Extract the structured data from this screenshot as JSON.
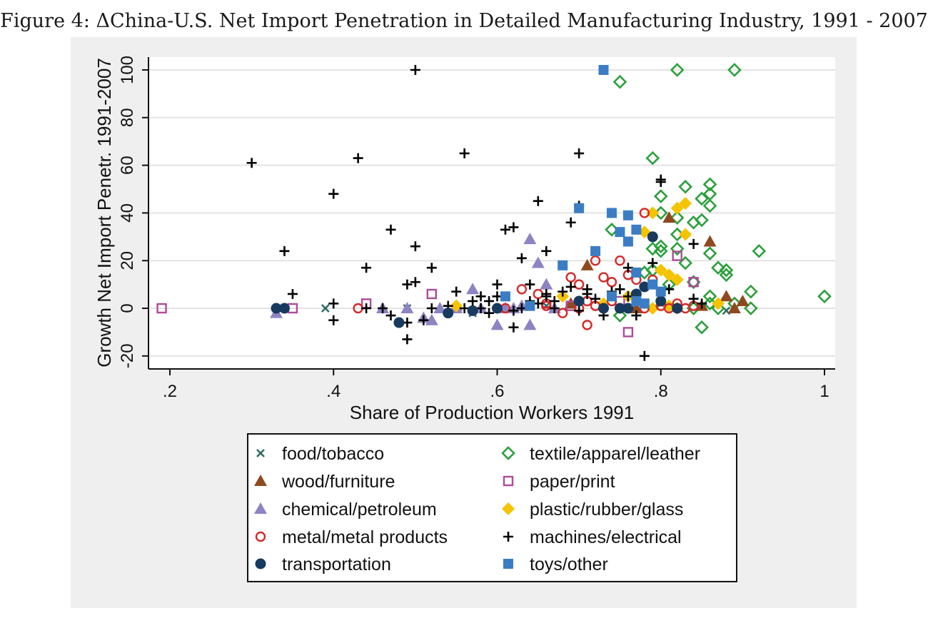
{
  "figure": {
    "title": "Figure 4: ΔChina-U.S. Net Import Penetration in Detailed Manufacturing Industry, 1991 - 2007"
  },
  "chart_data": {
    "type": "scatter",
    "title": "Figure 4: ΔChina-U.S. Net Import Penetration in Detailed Manufacturing Industry, 1991 - 2007",
    "xlabel": "Share of Production Workers 1991",
    "ylabel": "Growth Net Import Penetr. 1991-2007",
    "xlim": [
      0.18,
      1.0
    ],
    "ylim": [
      -25,
      105
    ],
    "x_ticks": [
      0.2,
      0.4,
      0.6,
      0.8,
      1.0
    ],
    "x_tick_labels": [
      ".2",
      ".4",
      ".6",
      ".8",
      "1"
    ],
    "y_ticks": [
      -20,
      0,
      20,
      40,
      60,
      80,
      100
    ],
    "y_tick_labels": [
      "-20",
      "0",
      "20",
      "40",
      "60",
      "80",
      "100"
    ],
    "grid": "horizontal",
    "legend_position": "bottom",
    "series": [
      {
        "name": "food/tobacco",
        "marker": "x",
        "color": "#2f6b63",
        "points": [
          [
            0.39,
            0
          ],
          [
            0.49,
            0
          ],
          [
            0.57,
            -2
          ],
          [
            0.66,
            1
          ],
          [
            0.8,
            2
          ],
          [
            0.88,
            -1
          ]
        ]
      },
      {
        "name": "textile/apparel/leather",
        "marker": "diamond-open",
        "color": "#2ca03c",
        "points": [
          [
            0.75,
            95
          ],
          [
            0.82,
            100
          ],
          [
            0.89,
            100
          ],
          [
            0.79,
            63
          ],
          [
            0.8,
            47
          ],
          [
            0.83,
            51
          ],
          [
            0.86,
            52
          ],
          [
            0.86,
            48
          ],
          [
            0.85,
            46
          ],
          [
            0.86,
            43
          ],
          [
            0.84,
            36
          ],
          [
            0.85,
            37
          ],
          [
            0.8,
            40
          ],
          [
            0.82,
            38
          ],
          [
            0.82,
            31
          ],
          [
            0.8,
            26
          ],
          [
            0.8,
            24
          ],
          [
            0.82,
            25
          ],
          [
            0.79,
            25
          ],
          [
            0.86,
            23
          ],
          [
            0.74,
            33
          ],
          [
            0.92,
            24
          ],
          [
            0.83,
            19
          ],
          [
            0.87,
            17
          ],
          [
            0.88,
            16
          ],
          [
            0.88,
            14
          ],
          [
            0.79,
            16
          ],
          [
            0.78,
            15
          ],
          [
            0.81,
            10
          ],
          [
            0.91,
            7
          ],
          [
            0.86,
            5
          ],
          [
            0.86,
            2
          ],
          [
            0.89,
            2
          ],
          [
            0.91,
            0
          ],
          [
            1.0,
            5
          ],
          [
            0.84,
            0
          ],
          [
            0.75,
            -3
          ],
          [
            0.85,
            -8
          ],
          [
            0.87,
            0
          ],
          [
            0.84,
            11
          ]
        ]
      },
      {
        "name": "wood/furniture",
        "marker": "triangle",
        "color": "#8e4a1f",
        "points": [
          [
            0.81,
            38
          ],
          [
            0.86,
            28
          ],
          [
            0.71,
            18
          ],
          [
            0.9,
            3
          ],
          [
            0.88,
            5
          ],
          [
            0.89,
            0
          ],
          [
            0.77,
            0
          ],
          [
            0.85,
            1
          ],
          [
            0.69,
            2
          ]
        ]
      },
      {
        "name": "paper/print",
        "marker": "square-open",
        "color": "#b04a98",
        "points": [
          [
            0.19,
            0
          ],
          [
            0.35,
            0
          ],
          [
            0.44,
            2
          ],
          [
            0.52,
            6
          ],
          [
            0.76,
            -10
          ],
          [
            0.82,
            22
          ],
          [
            0.84,
            11
          ],
          [
            0.75,
            3
          ],
          [
            0.69,
            1
          ]
        ]
      },
      {
        "name": "chemical/petroleum",
        "marker": "triangle",
        "color": "#8d84c3",
        "points": [
          [
            0.33,
            -2
          ],
          [
            0.46,
            0
          ],
          [
            0.49,
            0
          ],
          [
            0.51,
            -4
          ],
          [
            0.52,
            -5
          ],
          [
            0.53,
            0
          ],
          [
            0.55,
            1
          ],
          [
            0.57,
            8
          ],
          [
            0.6,
            -7
          ],
          [
            0.61,
            0
          ],
          [
            0.63,
            1
          ],
          [
            0.64,
            29
          ],
          [
            0.64,
            -7
          ],
          [
            0.65,
            19
          ],
          [
            0.66,
            10
          ],
          [
            0.67,
            0
          ],
          [
            0.55,
            0
          ],
          [
            0.62,
            0
          ],
          [
            0.58,
            0
          ]
        ]
      },
      {
        "name": "plastic/rubber/glass",
        "marker": "diamond",
        "color": "#f5c400",
        "points": [
          [
            0.79,
            40
          ],
          [
            0.82,
            42
          ],
          [
            0.83,
            44
          ],
          [
            0.83,
            31
          ],
          [
            0.78,
            32
          ],
          [
            0.8,
            16
          ],
          [
            0.81,
            14
          ],
          [
            0.82,
            12
          ],
          [
            0.76,
            5
          ],
          [
            0.79,
            0
          ],
          [
            0.81,
            1
          ],
          [
            0.87,
            2
          ],
          [
            0.68,
            5
          ],
          [
            0.55,
            1
          ],
          [
            0.73,
            2
          ],
          [
            0.82,
            0
          ]
        ]
      },
      {
        "name": "metal/metal products",
        "marker": "circle-open",
        "color": "#d42a2a",
        "points": [
          [
            0.43,
            0
          ],
          [
            0.63,
            8
          ],
          [
            0.65,
            6
          ],
          [
            0.66,
            1
          ],
          [
            0.68,
            -2
          ],
          [
            0.7,
            0
          ],
          [
            0.71,
            -7
          ],
          [
            0.72,
            20
          ],
          [
            0.73,
            13
          ],
          [
            0.74,
            11
          ],
          [
            0.75,
            20
          ],
          [
            0.76,
            14
          ],
          [
            0.77,
            12
          ],
          [
            0.78,
            40
          ],
          [
            0.79,
            12
          ],
          [
            0.8,
            1
          ],
          [
            0.81,
            0
          ],
          [
            0.82,
            2
          ],
          [
            0.83,
            0
          ],
          [
            0.84,
            1
          ],
          [
            0.72,
            1
          ],
          [
            0.69,
            13
          ],
          [
            0.7,
            10
          ],
          [
            0.71,
            3
          ],
          [
            0.74,
            3
          ],
          [
            0.76,
            0
          ],
          [
            0.78,
            0
          ],
          [
            0.66,
            2
          ],
          [
            0.61,
            0
          ]
        ]
      },
      {
        "name": "machines/electrical",
        "marker": "plus",
        "color": "#000000",
        "points": [
          [
            0.5,
            100
          ],
          [
            0.3,
            61
          ],
          [
            0.43,
            63
          ],
          [
            0.56,
            65
          ],
          [
            0.7,
            65
          ],
          [
            0.4,
            48
          ],
          [
            0.65,
            45
          ],
          [
            0.47,
            33
          ],
          [
            0.5,
            26
          ],
          [
            0.61,
            33
          ],
          [
            0.62,
            34
          ],
          [
            0.34,
            24
          ],
          [
            0.66,
            24
          ],
          [
            0.69,
            36
          ],
          [
            0.7,
            43
          ],
          [
            0.44,
            17
          ],
          [
            0.52,
            17
          ],
          [
            0.63,
            21
          ],
          [
            0.49,
            10
          ],
          [
            0.5,
            11
          ],
          [
            0.64,
            10
          ],
          [
            0.35,
            6
          ],
          [
            0.4,
            2
          ],
          [
            0.4,
            -5
          ],
          [
            0.44,
            0
          ],
          [
            0.46,
            0
          ],
          [
            0.47,
            -3
          ],
          [
            0.49,
            -6
          ],
          [
            0.49,
            -13
          ],
          [
            0.51,
            -5
          ],
          [
            0.52,
            0
          ],
          [
            0.54,
            1
          ],
          [
            0.55,
            7
          ],
          [
            0.56,
            0
          ],
          [
            0.57,
            3
          ],
          [
            0.58,
            5
          ],
          [
            0.59,
            3
          ],
          [
            0.59,
            -2
          ],
          [
            0.6,
            10
          ],
          [
            0.6,
            5
          ],
          [
            0.62,
            -1
          ],
          [
            0.62,
            -8
          ],
          [
            0.63,
            0
          ],
          [
            0.64,
            3
          ],
          [
            0.65,
            2
          ],
          [
            0.66,
            5
          ],
          [
            0.67,
            3
          ],
          [
            0.67,
            0
          ],
          [
            0.68,
            7
          ],
          [
            0.69,
            9
          ],
          [
            0.7,
            -1
          ],
          [
            0.71,
            6
          ],
          [
            0.72,
            4
          ],
          [
            0.73,
            -3
          ],
          [
            0.74,
            7
          ],
          [
            0.75,
            8
          ],
          [
            0.76,
            17
          ],
          [
            0.76,
            5
          ],
          [
            0.77,
            -3
          ],
          [
            0.78,
            -20
          ],
          [
            0.79,
            19
          ],
          [
            0.8,
            53
          ],
          [
            0.8,
            54
          ],
          [
            0.81,
            8
          ],
          [
            0.84,
            27
          ],
          [
            0.84,
            4
          ],
          [
            0.85,
            2
          ],
          [
            0.76,
            0
          ],
          [
            0.73,
            0
          ],
          [
            0.58,
            0
          ],
          [
            0.66,
            6
          ],
          [
            0.71,
            8
          ]
        ]
      },
      {
        "name": "transportation",
        "marker": "circle",
        "color": "#173a5e",
        "points": [
          [
            0.33,
            0
          ],
          [
            0.34,
            0
          ],
          [
            0.48,
            -6
          ],
          [
            0.54,
            -2
          ],
          [
            0.57,
            -1
          ],
          [
            0.6,
            0
          ],
          [
            0.7,
            3
          ],
          [
            0.75,
            0
          ],
          [
            0.76,
            0
          ],
          [
            0.77,
            6
          ],
          [
            0.78,
            9
          ],
          [
            0.79,
            30
          ],
          [
            0.8,
            3
          ],
          [
            0.82,
            0
          ],
          [
            0.73,
            0
          ]
        ]
      },
      {
        "name": "toys/other",
        "marker": "square",
        "color": "#3b7dc4",
        "points": [
          [
            0.73,
            100
          ],
          [
            0.7,
            42
          ],
          [
            0.74,
            40
          ],
          [
            0.76,
            39
          ],
          [
            0.75,
            32
          ],
          [
            0.77,
            33
          ],
          [
            0.76,
            28
          ],
          [
            0.72,
            24
          ],
          [
            0.68,
            18
          ],
          [
            0.77,
            15
          ],
          [
            0.79,
            10
          ],
          [
            0.8,
            7
          ],
          [
            0.61,
            5
          ],
          [
            0.64,
            1
          ],
          [
            0.74,
            5
          ],
          [
            0.77,
            3
          ],
          [
            0.78,
            2
          ]
        ]
      }
    ]
  }
}
